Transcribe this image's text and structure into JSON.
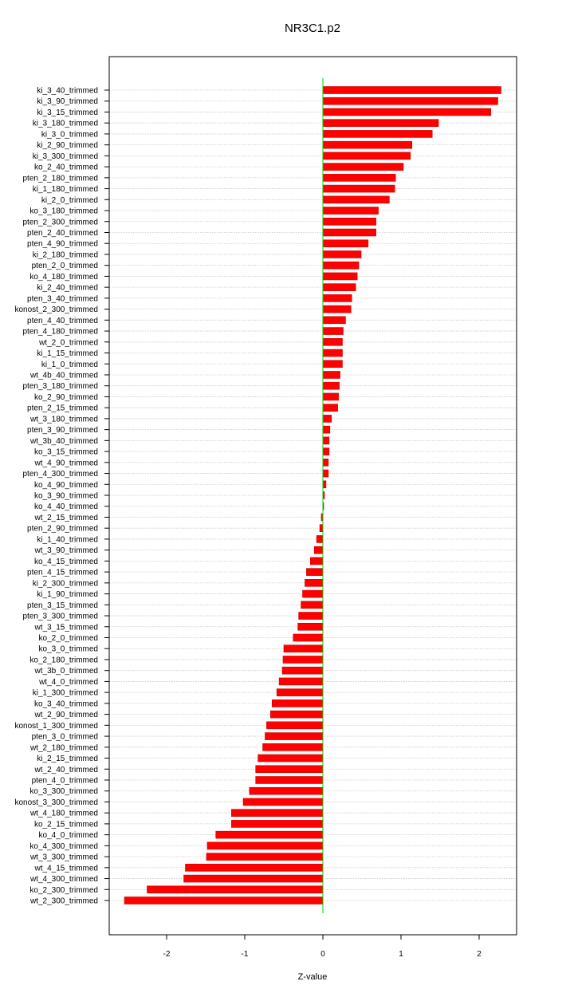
{
  "chart_data": {
    "type": "bar",
    "orientation": "horizontal",
    "title": "NR3C1.p2",
    "xlabel": "Z-value",
    "ylabel": "",
    "xlim": [
      -2.65,
      2.5
    ],
    "xticks": [
      -2,
      -1,
      0,
      1,
      2
    ],
    "grid": true,
    "colors": {
      "bar": "#ff0000",
      "bar_border": "#cc0000",
      "zero_line": "#00cc00",
      "grid": "#c8c8c8",
      "frame": "#000000"
    },
    "categories": [
      "ki_3_40_trimmed",
      "ki_3_90_trimmed",
      "ki_3_15_trimmed",
      "ki_3_180_trimmed",
      "ki_3_0_trimmed",
      "ki_2_90_trimmed",
      "ki_3_300_trimmed",
      "ko_2_40_trimmed",
      "pten_2_180_trimmed",
      "ki_1_180_trimmed",
      "ki_2_0_trimmed",
      "ko_3_180_trimmed",
      "pten_2_300_trimmed",
      "pten_2_40_trimmed",
      "pten_4_90_trimmed",
      "ki_2_180_trimmed",
      "pten_2_0_trimmed",
      "ko_4_180_trimmed",
      "ki_2_40_trimmed",
      "pten_3_40_trimmed",
      "konost_2_300_trimmed",
      "pten_4_40_trimmed",
      "pten_4_180_trimmed",
      "wt_2_0_trimmed",
      "ki_1_15_trimmed",
      "ki_1_0_trimmed",
      "wt_4b_40_trimmed",
      "pten_3_180_trimmed",
      "ko_2_90_trimmed",
      "pten_2_15_trimmed",
      "wt_3_180_trimmed",
      "pten_3_90_trimmed",
      "wt_3b_40_trimmed",
      "ko_3_15_trimmed",
      "wt_4_90_trimmed",
      "pten_4_300_trimmed",
      "ko_4_90_trimmed",
      "ko_3_90_trimmed",
      "ko_4_40_trimmed",
      "wt_2_15_trimmed",
      "pten_2_90_trimmed",
      "ki_1_40_trimmed",
      "wt_3_90_trimmed",
      "ko_4_15_trimmed",
      "pten_4_15_trimmed",
      "ki_2_300_trimmed",
      "ki_1_90_trimmed",
      "pten_3_15_trimmed",
      "pten_3_300_trimmed",
      "wt_3_15_trimmed",
      "ko_2_0_trimmed",
      "ko_3_0_trimmed",
      "ko_2_180_trimmed",
      "wt_3b_0_trimmed",
      "wt_4_0_trimmed",
      "ki_1_300_trimmed",
      "ko_3_40_trimmed",
      "wt_2_90_trimmed",
      "konost_1_300_trimmed",
      "pten_3_0_trimmed",
      "wt_2_180_trimmed",
      "ki_2_15_trimmed",
      "wt_2_40_trimmed",
      "pten_4_0_trimmed",
      "ko_3_300_trimmed",
      "konost_3_300_trimmed",
      "wt_4_180_trimmed",
      "ko_2_15_trimmed",
      "ko_4_0_trimmed",
      "ko_4_300_trimmed",
      "wt_3_300_trimmed",
      "wt_4_15_trimmed",
      "wt_4_300_trimmed",
      "ko_2_300_trimmed",
      "wt_2_300_trimmed"
    ],
    "values": [
      2.28,
      2.24,
      2.15,
      1.48,
      1.4,
      1.14,
      1.12,
      1.03,
      0.93,
      0.92,
      0.85,
      0.71,
      0.68,
      0.68,
      0.58,
      0.49,
      0.46,
      0.44,
      0.42,
      0.37,
      0.36,
      0.29,
      0.26,
      0.25,
      0.25,
      0.25,
      0.22,
      0.21,
      0.2,
      0.19,
      0.11,
      0.09,
      0.08,
      0.08,
      0.07,
      0.07,
      0.04,
      0.02,
      0.01,
      -0.02,
      -0.04,
      -0.08,
      -0.11,
      -0.16,
      -0.21,
      -0.23,
      -0.26,
      -0.28,
      -0.31,
      -0.32,
      -0.38,
      -0.5,
      -0.51,
      -0.52,
      -0.56,
      -0.59,
      -0.65,
      -0.67,
      -0.72,
      -0.74,
      -0.77,
      -0.83,
      -0.86,
      -0.86,
      -0.94,
      -1.02,
      -1.17,
      -1.17,
      -1.37,
      -1.48,
      -1.49,
      -1.76,
      -1.78,
      -2.25,
      -2.54
    ]
  }
}
